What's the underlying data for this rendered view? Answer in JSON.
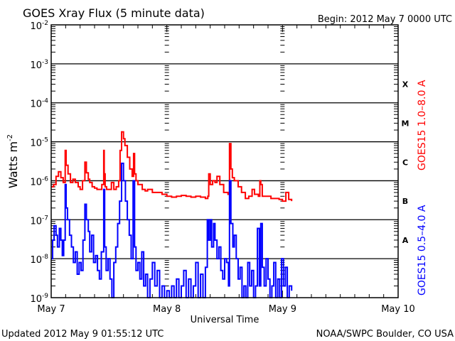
{
  "chart_data": {
    "type": "line",
    "title": "GOES Xray Flux (5 minute data)",
    "begin_label": "Begin:  2012 May 7 0000 UTC",
    "xlabel": "Universal Time",
    "ylabel": "Watts m",
    "ylabel_sup": "-2",
    "x_unit": "hours since 2012 May 7 0000 UTC",
    "xlim": [
      0,
      72
    ],
    "ylim": [
      1e-09,
      0.01
    ],
    "yscale": "log",
    "y_ticks": [
      {
        "base": "10",
        "exp": "-2",
        "value": 0.01
      },
      {
        "base": "10",
        "exp": "-3",
        "value": 0.001
      },
      {
        "base": "10",
        "exp": "-4",
        "value": 0.0001
      },
      {
        "base": "10",
        "exp": "-5",
        "value": 1e-05
      },
      {
        "base": "10",
        "exp": "-6",
        "value": 1e-06
      },
      {
        "base": "10",
        "exp": "-7",
        "value": 1e-07
      },
      {
        "base": "10",
        "exp": "-8",
        "value": 1e-08
      },
      {
        "base": "10",
        "exp": "-9",
        "value": 1e-09
      }
    ],
    "x_ticks": [
      {
        "label": "May 7",
        "value": 0
      },
      {
        "label": "May 8",
        "value": 24
      },
      {
        "label": "May 9",
        "value": 48
      },
      {
        "label": "May 10",
        "value": 72
      }
    ],
    "flare_classes": [
      {
        "label": "X",
        "value": 0.0003
      },
      {
        "label": "M",
        "value": 3e-05
      },
      {
        "label": "C",
        "value": 3e-06
      },
      {
        "label": "B",
        "value": 3e-07
      },
      {
        "label": "A",
        "value": 3e-08
      }
    ],
    "grid": "horizontal at decades",
    "series": [
      {
        "name": "GOES15 1.0–8.0 A",
        "color": "#ff0000",
        "x": [
          0,
          0.5,
          1,
          1.5,
          2,
          2.5,
          2.9,
          3.1,
          3.5,
          4,
          4.5,
          5,
          5.6,
          6,
          6.5,
          7,
          7.3,
          7.7,
          8,
          8.5,
          9,
          9.5,
          10,
          10.5,
          10.9,
          11,
          11.2,
          11.5,
          12,
          12.5,
          13,
          13.5,
          14,
          14.3,
          14.6,
          15,
          15.3,
          15.8,
          16.3,
          16.8,
          17.1,
          17.3,
          17.6,
          18,
          18.9,
          19.5,
          20,
          21,
          22,
          23,
          24,
          25,
          26,
          27,
          28,
          29,
          30,
          31,
          32,
          32.5,
          32.7,
          33,
          33.5,
          34,
          34.4,
          35,
          35.8,
          36.3,
          36.7,
          37,
          37.3,
          37.6,
          38,
          38.8,
          39.5,
          40.3,
          41,
          41.7,
          42.2,
          43,
          43.3,
          43.5,
          43.8,
          44.5,
          45.6,
          46.5,
          47.3,
          48,
          48.4,
          48.7,
          49.3,
          49.9
        ],
        "values": [
          7e-07,
          8e-07,
          1.3e-06,
          1.7e-06,
          1.2e-06,
          9e-07,
          6e-06,
          2.5e-06,
          1.5e-06,
          9e-07,
          1.1e-06,
          9e-07,
          7e-07,
          6e-07,
          1e-06,
          3e-06,
          1.6e-06,
          1.1e-06,
          9e-07,
          7e-07,
          6.5e-07,
          6e-07,
          6e-07,
          8e-07,
          6e-06,
          1.5e-06,
          7e-07,
          6e-07,
          6e-07,
          9e-07,
          6e-07,
          7e-07,
          1e-06,
          6e-06,
          1.8e-05,
          1.2e-05,
          8e-06,
          4e-06,
          2e-06,
          1.3e-06,
          5e-06,
          1.5e-06,
          1e-06,
          8e-07,
          6e-07,
          5.5e-07,
          6e-07,
          5e-07,
          5e-07,
          4.5e-07,
          4e-07,
          3.8e-07,
          4e-07,
          4.2e-07,
          4e-07,
          3.8e-07,
          4e-07,
          3.8e-07,
          3.5e-07,
          4e-07,
          1.5e-06,
          8e-07,
          1e-06,
          9e-07,
          1.3e-06,
          8e-07,
          5e-07,
          5e-07,
          4.5e-07,
          9e-06,
          2e-06,
          1.2e-06,
          1e-06,
          7e-07,
          5e-07,
          3.5e-07,
          4e-07,
          6e-07,
          4.5e-07,
          4e-07,
          1e-06,
          8e-07,
          4e-07,
          4e-07,
          3.5e-07,
          3.5e-07,
          3.3e-07,
          3e-07,
          3e-07,
          5e-07,
          3.3e-07,
          3e-07
        ],
        "axis_label": "GOES15 1.0–8.0 A"
      },
      {
        "name": "GOES15 0.5–4.0 A",
        "color": "#0000ff",
        "x": [
          0,
          0.3,
          0.6,
          1,
          1.3,
          1.7,
          2,
          2.3,
          2.6,
          2.9,
          3.1,
          3.4,
          3.8,
          4.2,
          4.6,
          5,
          5.4,
          5.8,
          6.2,
          6.6,
          7,
          7.3,
          7.7,
          8,
          8.4,
          8.8,
          9.2,
          9.6,
          10,
          10.4,
          10.9,
          11.1,
          11.4,
          11.8,
          12.2,
          12.6,
          13,
          13.4,
          13.8,
          14.2,
          14.6,
          15,
          15.4,
          15.8,
          16.2,
          16.6,
          17,
          17.3,
          17.6,
          18,
          18.4,
          18.8,
          19.2,
          19.6,
          20,
          20.5,
          21,
          21.5,
          22,
          22.5,
          23,
          23.5,
          24,
          24.5,
          25,
          25.5,
          26,
          26.5,
          27,
          27.5,
          28,
          28.5,
          29,
          29.5,
          30,
          30.5,
          31,
          31.5,
          32,
          32.4,
          32.7,
          33,
          33.3,
          33.7,
          34,
          34.4,
          34.8,
          35.2,
          35.6,
          36,
          36.4,
          36.8,
          37,
          37.3,
          37.7,
          38,
          38.4,
          38.8,
          39.2,
          39.6,
          40,
          40.4,
          40.8,
          41.2,
          41.6,
          42,
          42.4,
          42.8,
          43.2,
          43.5,
          43.8,
          44.2,
          44.6,
          45,
          45.4,
          45.8,
          46.2,
          46.6,
          47,
          47.4,
          47.8,
          48.2,
          48.6,
          49,
          49.4,
          49.9
        ],
        "values": [
          1e-08,
          3e-08,
          7e-08,
          4e-08,
          2e-08,
          6e-08,
          3e-08,
          1.2e-08,
          3e-08,
          8e-07,
          2e-07,
          1e-07,
          4e-08,
          2e-08,
          8e-09,
          1.5e-08,
          4e-09,
          8e-09,
          5e-09,
          3e-08,
          2.5e-07,
          1e-07,
          5e-08,
          1.5e-08,
          4e-08,
          8e-09,
          1.2e-08,
          5e-09,
          3e-09,
          1.5e-08,
          6e-07,
          2e-08,
          5e-09,
          1e-08,
          3e-09,
          1e-09,
          8e-09,
          2e-08,
          8e-08,
          3e-07,
          2.8e-06,
          1e-06,
          3e-07,
          1e-07,
          4e-08,
          1e-08,
          1e-06,
          2e-08,
          5e-09,
          8e-09,
          3e-09,
          1.5e-08,
          2e-09,
          4e-09,
          1e-09,
          3e-09,
          8e-09,
          2e-09,
          5e-09,
          1e-09,
          2e-09,
          1e-09,
          1.5e-09,
          1e-09,
          2e-09,
          1e-09,
          3e-09,
          1e-09,
          2e-09,
          5e-09,
          1e-09,
          3e-09,
          1e-09,
          2e-09,
          8e-09,
          1e-09,
          4e-09,
          1e-09,
          6e-09,
          1e-07,
          3e-08,
          1e-07,
          2e-08,
          8e-08,
          3e-08,
          1e-08,
          2e-08,
          5e-09,
          3e-09,
          1e-08,
          8e-09,
          2e-09,
          1e-06,
          8e-08,
          2e-08,
          4e-08,
          1e-08,
          3e-09,
          6e-09,
          1e-09,
          2e-09,
          1e-09,
          8e-09,
          2e-09,
          5e-09,
          1e-09,
          2e-09,
          6e-08,
          2e-09,
          8e-08,
          6e-09,
          2e-09,
          1e-08,
          3e-09,
          1e-09,
          2e-09,
          8e-09,
          1e-09,
          3e-09,
          1e-09,
          1e-08,
          2e-09,
          6e-09,
          1e-09,
          2e-09,
          1.5e-09
        ],
        "axis_label": "GOES15 0.5–4.0 A"
      }
    ]
  },
  "footer": {
    "updated": "Updated 2012 May  9 01:55:12 UTC",
    "credit": "NOAA/SWPC Boulder, CO USA"
  }
}
